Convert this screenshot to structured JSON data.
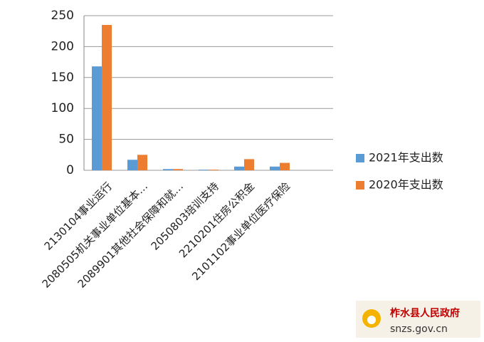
{
  "chart_data": {
    "type": "bar",
    "categories": [
      "2130104事业运行",
      "2080505机关事业单位基本…",
      "2089901其他社会保障和就…",
      "2050803培训支持",
      "2210201住房公积金",
      "2101102事业单位医疗保险",
      null
    ],
    "series": [
      {
        "name": "2021年支出数",
        "color": "#5b9bd5",
        "values": [
          168,
          17,
          2,
          1,
          6,
          6,
          0
        ]
      },
      {
        "name": "2020年支出数",
        "color": "#ed7d31",
        "values": [
          235,
          25,
          2,
          1,
          18,
          12,
          0
        ]
      }
    ],
    "ylim": [
      0,
      250
    ],
    "yticks": [
      0,
      50,
      100,
      150,
      200,
      250
    ],
    "grid": true,
    "legend": "right"
  },
  "watermark": {
    "title": "柞水县人民政府",
    "url": "snzs.gov.cn"
  }
}
